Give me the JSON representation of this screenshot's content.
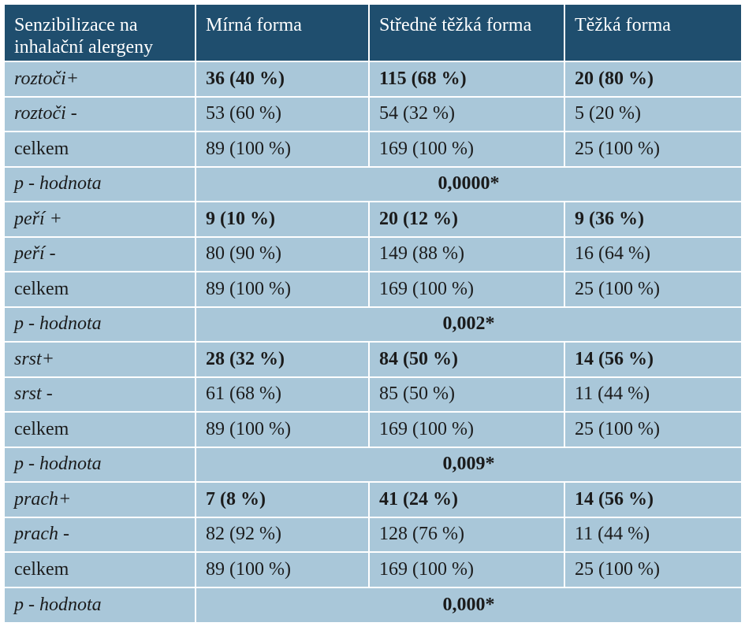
{
  "table": {
    "headers": [
      "Senzibilizace na inhalační alergeny",
      "Mírná forma",
      "Středně těžká forma",
      "Těžká forma"
    ],
    "groups": [
      {
        "positive": {
          "label": "roztoči+",
          "values": [
            "36 (40 %)",
            "115 (68 %)",
            "20 (80 %)"
          ]
        },
        "negative": {
          "label": "roztoči -",
          "values": [
            "53 (60 %)",
            "54 (32 %)",
            "5 (20 %)"
          ]
        },
        "total": {
          "label": "celkem",
          "values": [
            "89 (100 %)",
            "169 (100 %)",
            "25 (100 %)"
          ]
        },
        "pvalue": {
          "label": "p - hodnota",
          "value": "0,0000*"
        }
      },
      {
        "positive": {
          "label": "peří +",
          "values": [
            "9 (10 %)",
            "20 (12 %)",
            "9 (36 %)"
          ]
        },
        "negative": {
          "label": "peří -",
          "values": [
            "80 (90 %)",
            "149 (88 %)",
            "16 (64 %)"
          ]
        },
        "total": {
          "label": "celkem",
          "values": [
            "89 (100 %)",
            "169 (100 %)",
            "25 (100 %)"
          ]
        },
        "pvalue": {
          "label": "p - hodnota",
          "value": "0,002*"
        }
      },
      {
        "positive": {
          "label": "srst+",
          "values": [
            "28 (32 %)",
            "84 (50 %)",
            "14 (56 %)"
          ]
        },
        "negative": {
          "label": "srst  -",
          "values": [
            "61 (68 %)",
            "85 (50 %)",
            "11 (44 %)"
          ]
        },
        "total": {
          "label": "celkem",
          "values": [
            "89 (100 %)",
            "169 (100 %)",
            "25 (100 %)"
          ]
        },
        "pvalue": {
          "label": "p - hodnota",
          "value": "0,009*"
        }
      },
      {
        "positive": {
          "label": "prach+",
          "values": [
            "7 (8 %)",
            "41 (24 %)",
            "14 (56 %)"
          ]
        },
        "negative": {
          "label": "prach -",
          "values": [
            "82 (92 %)",
            "128 (76 %)",
            "11 (44 %)"
          ]
        },
        "total": {
          "label": "celkem",
          "values": [
            "89 (100 %)",
            "169 (100 %)",
            "25 (100 %)"
          ]
        },
        "pvalue": {
          "label": "p - hodnota",
          "value": "0,000*"
        }
      }
    ]
  },
  "colors": {
    "header_bg": "#1f4e6e",
    "header_text": "#ffffff",
    "cell_bg": "#a9c7d9",
    "cell_text": "#1b1b1b",
    "divider": "#ffffff"
  }
}
